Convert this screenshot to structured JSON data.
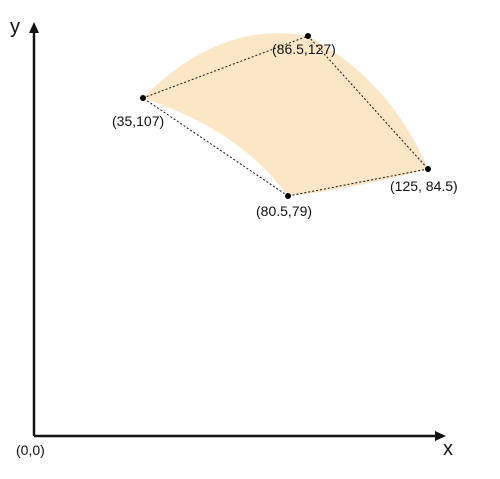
{
  "axes": {
    "x_label": "x",
    "y_label": "y",
    "origin_label": "(0,0)"
  },
  "points": [
    {
      "id": "p1",
      "label": "(35,107)"
    },
    {
      "id": "p2",
      "label": "(86.5,127)"
    },
    {
      "id": "p3",
      "label": "(125, 84.5)"
    },
    {
      "id": "p4",
      "label": "(80.5,79)"
    }
  ],
  "colors": {
    "region_fill": "#fbe6c6",
    "axis": "#111111",
    "dashed_edge": "#111111",
    "point": "#000000"
  }
}
